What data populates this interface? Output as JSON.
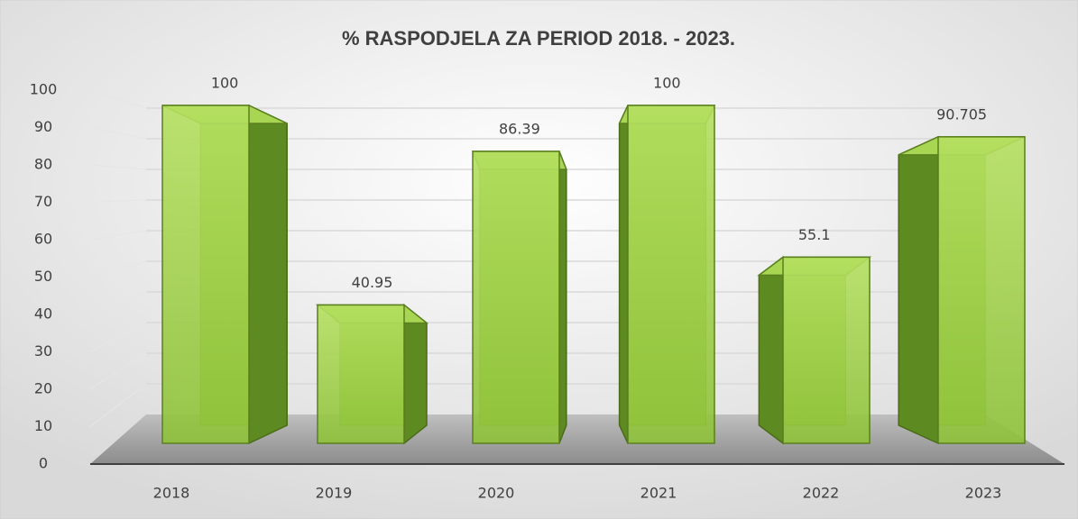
{
  "chart_data": {
    "type": "bar3d",
    "title": "% RASPODJELA ZA PERIOD 2018. - 2023.",
    "categories": [
      "2018",
      "2019",
      "2020",
      "2021",
      "2022",
      "2023"
    ],
    "values": [
      100,
      40.95,
      86.39,
      100,
      55.1,
      90.705
    ],
    "color": "#9acd3c",
    "ylim": [
      0,
      100
    ],
    "yticks": [
      0,
      10,
      20,
      30,
      40,
      50,
      60,
      70,
      80,
      90,
      100
    ],
    "grid": true
  }
}
